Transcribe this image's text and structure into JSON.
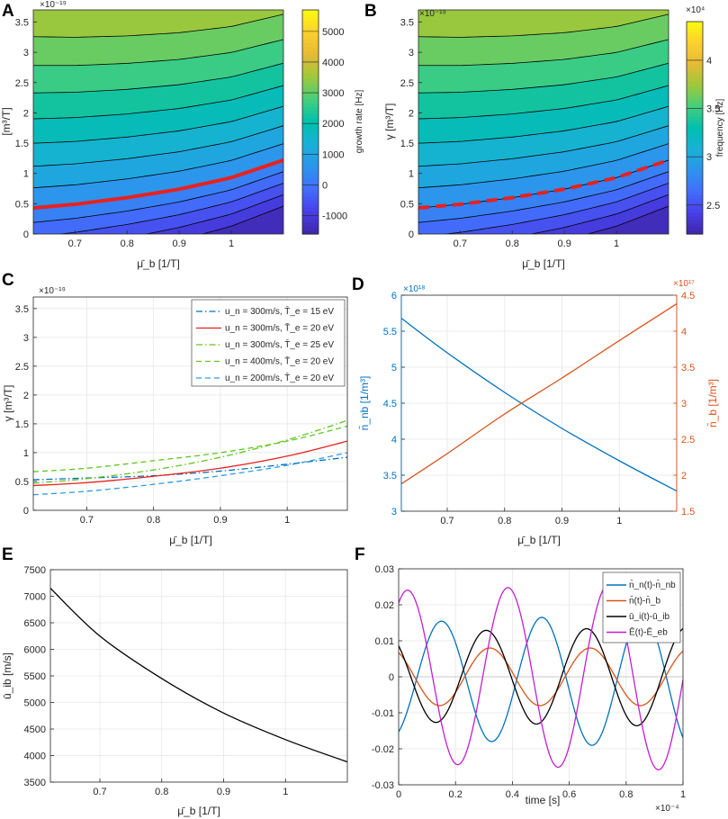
{
  "panels": {
    "A": {
      "letter": "A",
      "ylabel": "[m³/T]",
      "xlabel": "μ̄_b [1/T]",
      "exponent": "×10⁻¹⁹",
      "cbar_label": "growth rate [Hz]"
    },
    "B": {
      "letter": "B",
      "ylabel": "γ [m³/T]",
      "xlabel": "μ̄_b [1/T]",
      "exponent": "×10⁻¹⁹",
      "cbar_label": "frequency [Hz]",
      "cbar_exponent": "×10⁴"
    },
    "C": {
      "letter": "C",
      "ylabel": "γ [m³/T]",
      "xlabel": "μ̄_b [1/T]",
      "exponent": "×10⁻¹⁹"
    },
    "D": {
      "letter": "D",
      "ylabel_left": "n̄_nb [1/m³]",
      "ylabel_right": "n̄_b [1/m³]",
      "xlabel": "μ̄_b [1/T]",
      "exponent_left": "×10¹⁸",
      "exponent_right": "×10¹⁷"
    },
    "E": {
      "letter": "E",
      "ylabel": "ū_ib [m/s]",
      "xlabel": "μ̄_b [1/T]"
    },
    "F": {
      "letter": "F",
      "xlabel": "time [s]",
      "exponent": "×10⁻⁴"
    }
  },
  "chart_data": [
    {
      "id": "A",
      "type": "heatmap",
      "colormap": "parula",
      "xlim": [
        0.62,
        1.1
      ],
      "ylim": [
        0,
        3.7
      ],
      "xticks": [
        "0.7",
        "0.8",
        "0.9",
        "1"
      ],
      "xtick_values": [
        0.7,
        0.8,
        0.9,
        1.0
      ],
      "yticks": [
        "0",
        "0.5",
        "1",
        "1.5",
        "2",
        "2.5",
        "3",
        "3.5"
      ],
      "ytick_values": [
        0,
        0.5,
        1,
        1.5,
        2,
        2.5,
        3,
        3.5
      ],
      "colorbar": {
        "range": [
          -1600,
          5700
        ],
        "ticks": [
          "-1000",
          "0",
          "1000",
          "2000",
          "3000",
          "4000",
          "5000"
        ],
        "tick_values": [
          -1000,
          0,
          1000,
          2000,
          3000,
          4000,
          5000
        ]
      },
      "contour_line_color": "#000000",
      "marginal_curve": {
        "color": "#e8211f",
        "style": "solid",
        "x": [
          0.62,
          0.7,
          0.8,
          0.9,
          1.0,
          1.1
        ],
        "y": [
          0.43,
          0.49,
          0.6,
          0.74,
          0.93,
          1.22
        ]
      }
    },
    {
      "id": "B",
      "type": "heatmap",
      "colormap": "parula",
      "xlim": [
        0.62,
        1.1
      ],
      "ylim": [
        0,
        3.7
      ],
      "xticks": [
        "0.7",
        "0.8",
        "0.9",
        "1"
      ],
      "xtick_values": [
        0.7,
        0.8,
        0.9,
        1.0
      ],
      "yticks": [
        "0",
        "0.5",
        "1",
        "1.5",
        "2",
        "2.5",
        "3",
        "3.5"
      ],
      "ytick_values": [
        0,
        0.5,
        1,
        1.5,
        2,
        2.5,
        3,
        3.5
      ],
      "colorbar": {
        "range": [
          2.2,
          4.4
        ],
        "ticks": [
          "2.5",
          "3",
          "3.5",
          "4"
        ],
        "tick_values": [
          2.5,
          3,
          3.5,
          4
        ]
      },
      "contour_line_color": "#000000",
      "marginal_curve": {
        "color": "#e8211f",
        "style": "dashed",
        "x": [
          0.62,
          0.7,
          0.8,
          0.9,
          1.0,
          1.1
        ],
        "y": [
          0.43,
          0.49,
          0.6,
          0.74,
          0.93,
          1.22
        ]
      }
    },
    {
      "id": "C",
      "type": "line",
      "xlim": [
        0.62,
        1.09
      ],
      "ylim": [
        0,
        3.7
      ],
      "xticks": [
        "0.7",
        "0.8",
        "0.9",
        "1"
      ],
      "xtick_values": [
        0.7,
        0.8,
        0.9,
        1.0
      ],
      "yticks": [
        "0",
        "0.5",
        "1",
        "1.5",
        "2",
        "2.5",
        "3",
        "3.5"
      ],
      "ytick_values": [
        0,
        0.5,
        1,
        1.5,
        2,
        2.5,
        3,
        3.5
      ],
      "legend_position": "top-right",
      "series": [
        {
          "name": "u_n = 300m/s, T̄_e = 15 eV",
          "color": "#0072bd",
          "dash": "dashdot",
          "x": [
            0.62,
            0.7,
            0.8,
            0.9,
            1.0,
            1.09
          ],
          "y": [
            0.53,
            0.56,
            0.6,
            0.68,
            0.8,
            0.92
          ]
        },
        {
          "name": "u_n = 300m/s, T̄_e = 20 eV",
          "color": "#e8211f",
          "dash": "solid",
          "x": [
            0.62,
            0.7,
            0.8,
            0.9,
            1.0,
            1.09
          ],
          "y": [
            0.43,
            0.48,
            0.59,
            0.73,
            0.94,
            1.2
          ]
        },
        {
          "name": "u_n = 300m/s, T̄_e = 25 eV",
          "color": "#5fc620",
          "dash": "dashdot",
          "x": [
            0.62,
            0.7,
            0.8,
            0.9,
            1.0,
            1.09
          ],
          "y": [
            0.47,
            0.55,
            0.7,
            0.92,
            1.22,
            1.56
          ]
        },
        {
          "name": "u_n = 400m/s, T̄_e = 20 eV",
          "color": "#5fc620",
          "dash": "dashed",
          "x": [
            0.62,
            0.7,
            0.8,
            0.9,
            1.0,
            1.09
          ],
          "y": [
            0.67,
            0.73,
            0.86,
            1.0,
            1.2,
            1.46
          ]
        },
        {
          "name": "u_n = 200m/s, T̄_e = 20 eV",
          "color": "#3399e6",
          "dash": "dashed",
          "x": [
            0.62,
            0.7,
            0.8,
            0.9,
            1.0,
            1.09
          ],
          "y": [
            0.27,
            0.33,
            0.45,
            0.6,
            0.78,
            1.0
          ]
        }
      ]
    },
    {
      "id": "D",
      "type": "line",
      "xlim": [
        0.62,
        1.1
      ],
      "xticks": [
        "0.7",
        "0.8",
        "0.9",
        "1"
      ],
      "xtick_values": [
        0.7,
        0.8,
        0.9,
        1.0
      ],
      "ylim_left": [
        3,
        6
      ],
      "yticks_left": [
        "3",
        "3.5",
        "4",
        "4.5",
        "5",
        "5.5",
        "6"
      ],
      "ytick_values_left": [
        3,
        3.5,
        4,
        4.5,
        5,
        5.5,
        6
      ],
      "ylim_right": [
        1.5,
        4.5
      ],
      "yticks_right": [
        "1.5",
        "2",
        "2.5",
        "3",
        "3.5",
        "4",
        "4.5"
      ],
      "ytick_values_right": [
        1.5,
        2,
        2.5,
        3,
        3.5,
        4,
        4.5
      ],
      "left_color": "#0072bd",
      "right_color": "#d95319",
      "series": [
        {
          "name": "n̄_nb",
          "axis": "left",
          "color": "#0072bd",
          "x": [
            0.62,
            0.7,
            0.8,
            0.9,
            1.0,
            1.1
          ],
          "y": [
            5.68,
            5.2,
            4.65,
            4.15,
            3.7,
            3.28
          ]
        },
        {
          "name": "n̄_b",
          "axis": "right",
          "color": "#d95319",
          "x": [
            0.62,
            0.7,
            0.8,
            0.9,
            1.0,
            1.1
          ],
          "y": [
            1.88,
            2.3,
            2.85,
            3.35,
            3.87,
            4.38
          ]
        }
      ]
    },
    {
      "id": "E",
      "type": "line",
      "xlim": [
        0.62,
        1.1
      ],
      "ylim": [
        3500,
        7500
      ],
      "xticks": [
        "0.7",
        "0.8",
        "0.9",
        "1"
      ],
      "xtick_values": [
        0.7,
        0.8,
        0.9,
        1.0
      ],
      "yticks": [
        "3500",
        "4000",
        "4500",
        "5000",
        "5500",
        "6000",
        "6500",
        "7000",
        "7500"
      ],
      "ytick_values": [
        3500,
        4000,
        4500,
        5000,
        5500,
        6000,
        6500,
        7000,
        7500
      ],
      "series": [
        {
          "name": "ū_ib",
          "color": "#000000",
          "x": [
            0.62,
            0.7,
            0.8,
            0.9,
            1.0,
            1.1
          ],
          "y": [
            7150,
            6250,
            5450,
            4800,
            4300,
            3880
          ]
        }
      ]
    },
    {
      "id": "F",
      "type": "line",
      "xlim": [
        0,
        1
      ],
      "ylim": [
        -0.03,
        0.03
      ],
      "xticks": [
        "0",
        "0.2",
        "0.4",
        "0.6",
        "0.8",
        "1"
      ],
      "xtick_values": [
        0,
        0.2,
        0.4,
        0.6,
        0.8,
        1
      ],
      "yticks": [
        "-0.03",
        "-0.02",
        "-0.01",
        "0",
        "0.01",
        "0.02",
        "0.03"
      ],
      "ytick_values": [
        -0.03,
        -0.02,
        -0.01,
        0,
        0.01,
        0.02,
        0.03
      ],
      "legend_position": "top-right",
      "series": [
        {
          "name": "n̄_n(t)-n̄_nb",
          "color": "#0072bd",
          "amp": [
            0.016,
            0.019
          ],
          "period": 0.353,
          "phase": -1.1,
          "offset": -0.001
        },
        {
          "name": "n̄(t)-n̄_b",
          "color": "#d95319",
          "amp": [
            0.008,
            0.008
          ],
          "period": 0.353,
          "phase": 2.15,
          "offset": 0.0
        },
        {
          "name": "ū_i(t)-ū_ib",
          "color": "#000000",
          "amp": [
            0.0125,
            0.0138
          ],
          "period": 0.353,
          "phase": 2.38,
          "offset": 0.0
        },
        {
          "name": "Ē(t)-Ē_eb",
          "color": "#c21fd0",
          "amp": [
            0.024,
            0.026
          ],
          "period": 0.353,
          "phase": 1.02,
          "offset": 0.0
        }
      ]
    }
  ]
}
